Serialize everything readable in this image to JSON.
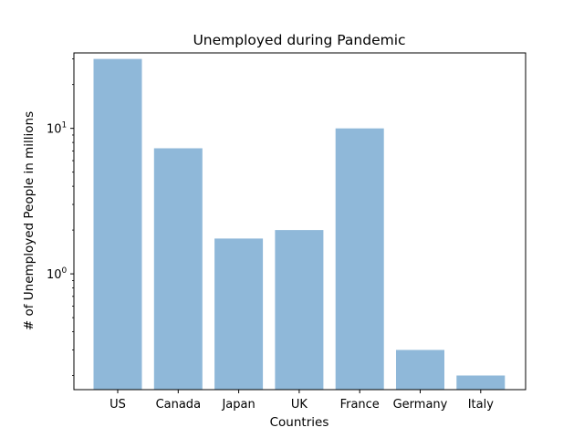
{
  "chart_data": {
    "type": "bar",
    "title": "Unemployed during Pandemic",
    "xlabel": "Countries",
    "ylabel": "# of Unemployed People in millions",
    "yscale": "log",
    "ylim": [
      0.16,
      33
    ],
    "categories": [
      "US",
      "Canada",
      "Japan",
      "UK",
      "France",
      "Germany",
      "Italy"
    ],
    "values": [
      30,
      7.3,
      1.75,
      2.0,
      10,
      0.3,
      0.2
    ],
    "yticks": [
      {
        "value": 1,
        "mantissa": "10",
        "exponent": "0"
      },
      {
        "value": 10,
        "mantissa": "10",
        "exponent": "1"
      }
    ],
    "bar_color": "#8fb8d9",
    "grid": false,
    "legend": "none"
  }
}
